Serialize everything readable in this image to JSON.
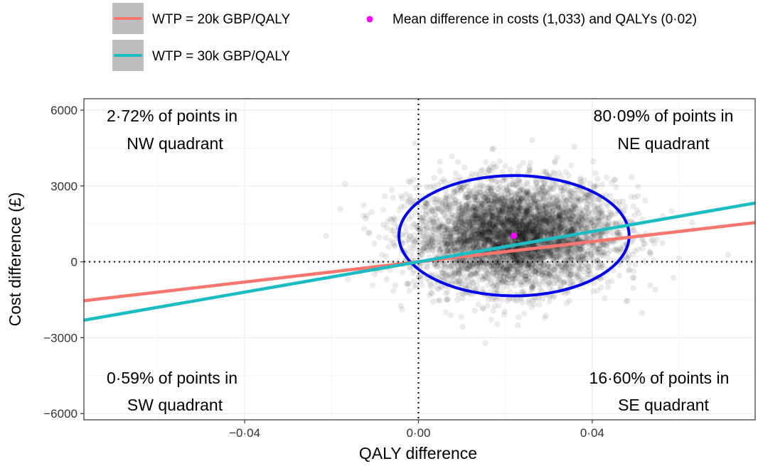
{
  "legend": {
    "items": [
      {
        "label": "WTP = 20k GBP/QALY",
        "color": "#f8766d",
        "kind": "line"
      },
      {
        "label": "WTP = 30k GBP/QALY",
        "color": "#1cbdc2",
        "kind": "line"
      },
      {
        "label": "Mean difference in costs (1,033) and QALYs (0·02)",
        "color": "#ff00ff",
        "kind": "point"
      }
    ]
  },
  "annotations": {
    "nw": [
      "2·72% of points in",
      "NW quadrant"
    ],
    "ne": [
      "80·09% of points in",
      "NE quadrant"
    ],
    "sw": [
      "0·59% of points in",
      "SW quadrant"
    ],
    "se": [
      "16·60% of points in",
      "SE quadrant"
    ]
  },
  "chart_data": {
    "type": "scatter",
    "title": "",
    "xlabel": "QALY difference",
    "ylabel": "Cost difference (£)",
    "xlim": [
      -0.077,
      0.0775
    ],
    "ylim": [
      -6250,
      6450
    ],
    "x_ticks": [
      {
        "value": -0.04,
        "label": "−0·04"
      },
      {
        "value": 0,
        "label": "0·00"
      },
      {
        "value": 0.04,
        "label": "0·04"
      }
    ],
    "y_ticks": [
      {
        "value": -6000,
        "label": "−6000"
      },
      {
        "value": -3000,
        "label": "−3000"
      },
      {
        "value": 0,
        "label": "0"
      },
      {
        "value": 3000,
        "label": "3000"
      },
      {
        "value": 6000,
        "label": "6000"
      }
    ],
    "grid": true,
    "reference_lines": {
      "vertical_x": 0,
      "horizontal_y": 0,
      "style": "dotted"
    },
    "legend_position": "top",
    "mean_point": {
      "x": 0.022,
      "y": 1033,
      "color": "#ff00ff"
    },
    "wtp_lines": [
      {
        "name": "WTP = 20k GBP/QALY",
        "slope": 20000,
        "color": "#f8766d"
      },
      {
        "name": "WTP = 30k GBP/QALY",
        "slope": 30000,
        "color": "#1cbdc2"
      }
    ],
    "confidence_ellipse": {
      "center_x": 0.022,
      "center_y": 1033,
      "half_width_x": 0.0265,
      "half_height_y": 2380,
      "color": "#0000ee"
    },
    "scatter_cloud": {
      "n_points": 5000,
      "mean_x": 0.022,
      "mean_y": 1033,
      "sd_x": 0.0115,
      "sd_y": 1050,
      "color": "#000000",
      "opacity": 0.08
    },
    "quadrant_shares": {
      "NW": "2·72%",
      "NE": "80·09%",
      "SW": "0·59%",
      "SE": "16·60%"
    }
  }
}
